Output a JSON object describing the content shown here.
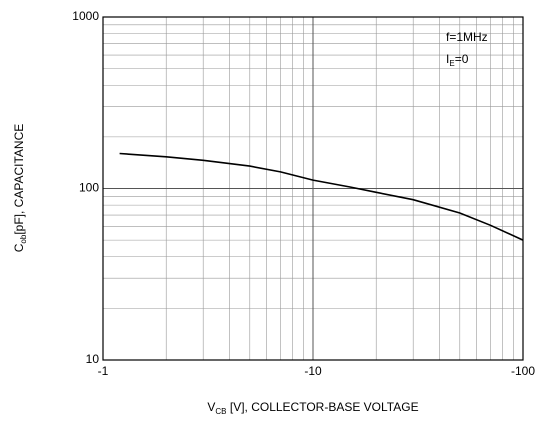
{
  "chart_data": {
    "type": "line",
    "x_label": {
      "main": "V",
      "sub": "CB",
      "rest": " [V], COLLECTOR-BASE VOLTAGE"
    },
    "y_label": {
      "main": "C",
      "sub": "ob",
      "rest": "[pF], CAPACITANCE"
    },
    "annotations": [
      {
        "main": "f=1MHz"
      },
      {
        "main": "I",
        "sub": "E",
        "rest": "=0"
      }
    ],
    "x": [
      1.2,
      2,
      3,
      5,
      7,
      10,
      15,
      20,
      30,
      50,
      70,
      100
    ],
    "series": [
      {
        "color": "#000000",
        "values": [
          160,
          153,
          146,
          135,
          125,
          112,
          102,
          95,
          86,
          72,
          61,
          50
        ]
      }
    ],
    "xlim": [
      1,
      100
    ],
    "ylim": [
      10,
      1000
    ],
    "xscale": "log",
    "yscale": "log",
    "xticks": [
      {
        "value": 1,
        "label": "-1"
      },
      {
        "value": 10,
        "label": "-10"
      },
      {
        "value": 100,
        "label": "-100"
      }
    ],
    "yticks": [
      10,
      100,
      1000
    ],
    "xminorticks": [
      2,
      3,
      4,
      5,
      6,
      7,
      8,
      9,
      20,
      30,
      40,
      50,
      60,
      70,
      80,
      90
    ],
    "yminorticks": [
      20,
      30,
      40,
      50,
      60,
      70,
      80,
      90,
      200,
      300,
      400,
      500,
      600,
      700,
      800,
      900
    ],
    "grid": true
  }
}
